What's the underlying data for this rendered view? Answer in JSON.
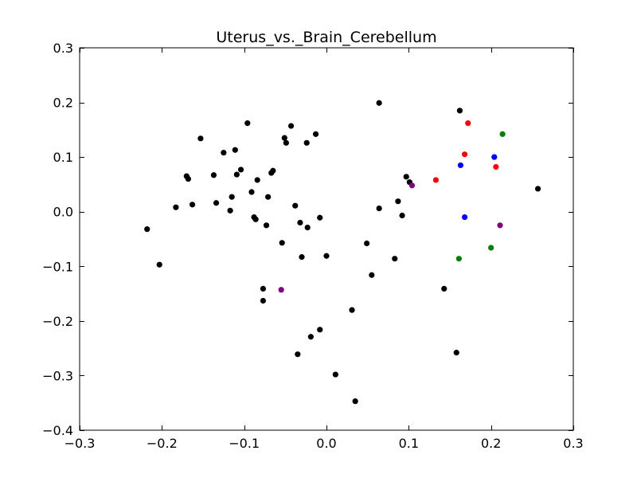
{
  "chart_data": {
    "type": "scatter",
    "title": "Uterus_vs._Brain_Cerebellum",
    "xlabel": "",
    "ylabel": "",
    "xlim": [
      -0.3,
      0.3
    ],
    "ylim": [
      -0.4,
      0.3
    ],
    "x_ticks": [
      -0.3,
      -0.2,
      -0.1,
      0.0,
      0.1,
      0.2,
      0.3
    ],
    "x_tick_labels": [
      "−0.3",
      "−0.2",
      "−0.1",
      "0.0",
      "0.1",
      "0.2",
      "0.3"
    ],
    "y_ticks": [
      0.3,
      0.2,
      0.1,
      0.0,
      -0.1,
      -0.2,
      -0.3,
      -0.4
    ],
    "y_tick_labels": [
      "0.3",
      "0.2",
      "0.1",
      "0.0",
      "−0.1",
      "−0.2",
      "−0.3",
      "−0.4"
    ],
    "grid": false,
    "legend": "none",
    "series": [
      {
        "color": "#000000",
        "points": [
          [
            -0.218,
            -0.032
          ],
          [
            -0.203,
            -0.097
          ],
          [
            -0.183,
            0.008
          ],
          [
            -0.17,
            0.065
          ],
          [
            -0.168,
            0.06
          ],
          [
            -0.163,
            0.013
          ],
          [
            -0.153,
            0.134
          ],
          [
            -0.137,
            0.067
          ],
          [
            -0.134,
            0.016
          ],
          [
            -0.125,
            0.108
          ],
          [
            -0.117,
            0.002
          ],
          [
            -0.115,
            0.027
          ],
          [
            -0.111,
            0.113
          ],
          [
            -0.109,
            0.068
          ],
          [
            -0.104,
            0.077
          ],
          [
            -0.096,
            0.162
          ],
          [
            -0.091,
            0.036
          ],
          [
            -0.088,
            -0.01
          ],
          [
            -0.086,
            -0.014
          ],
          [
            -0.084,
            0.058
          ],
          [
            -0.077,
            -0.141
          ],
          [
            -0.077,
            -0.163
          ],
          [
            -0.073,
            -0.025
          ],
          [
            -0.071,
            0.027
          ],
          [
            -0.067,
            0.071
          ],
          [
            -0.065,
            0.075
          ],
          [
            -0.054,
            -0.057
          ],
          [
            -0.051,
            0.135
          ],
          [
            -0.049,
            0.126
          ],
          [
            -0.043,
            0.157
          ],
          [
            -0.038,
            0.011
          ],
          [
            -0.035,
            -0.261
          ],
          [
            -0.032,
            -0.02
          ],
          [
            -0.03,
            -0.083
          ],
          [
            -0.024,
            0.126
          ],
          [
            -0.023,
            -0.029
          ],
          [
            -0.019,
            -0.229
          ],
          [
            -0.013,
            0.142
          ],
          [
            -0.008,
            -0.011
          ],
          [
            -0.008,
            -0.216
          ],
          [
            0.0,
            -0.081
          ],
          [
            0.011,
            -0.298
          ],
          [
            0.031,
            -0.18
          ],
          [
            0.035,
            -0.347
          ],
          [
            0.049,
            -0.058
          ],
          [
            0.055,
            -0.116
          ],
          [
            0.064,
            0.006
          ],
          [
            0.064,
            0.199
          ],
          [
            0.083,
            -0.086
          ],
          [
            0.087,
            0.019
          ],
          [
            0.092,
            -0.007
          ],
          [
            0.097,
            0.064
          ],
          [
            0.101,
            0.054
          ],
          [
            0.143,
            -0.141
          ],
          [
            0.158,
            -0.258
          ],
          [
            0.162,
            0.185
          ],
          [
            0.257,
            0.042
          ]
        ]
      },
      {
        "color": "#ff0000",
        "points": [
          [
            0.133,
            0.058
          ],
          [
            0.168,
            0.105
          ],
          [
            0.172,
            0.162
          ],
          [
            0.206,
            0.082
          ]
        ]
      },
      {
        "color": "#0000ff",
        "points": [
          [
            0.163,
            0.085
          ],
          [
            0.168,
            -0.01
          ],
          [
            0.204,
            0.1
          ]
        ]
      },
      {
        "color": "#008000",
        "points": [
          [
            0.161,
            -0.086
          ],
          [
            0.2,
            -0.066
          ],
          [
            0.214,
            0.142
          ]
        ]
      },
      {
        "color": "#800080",
        "points": [
          [
            -0.055,
            -0.143
          ],
          [
            0.104,
            0.048
          ],
          [
            0.211,
            -0.025
          ]
        ]
      }
    ]
  }
}
